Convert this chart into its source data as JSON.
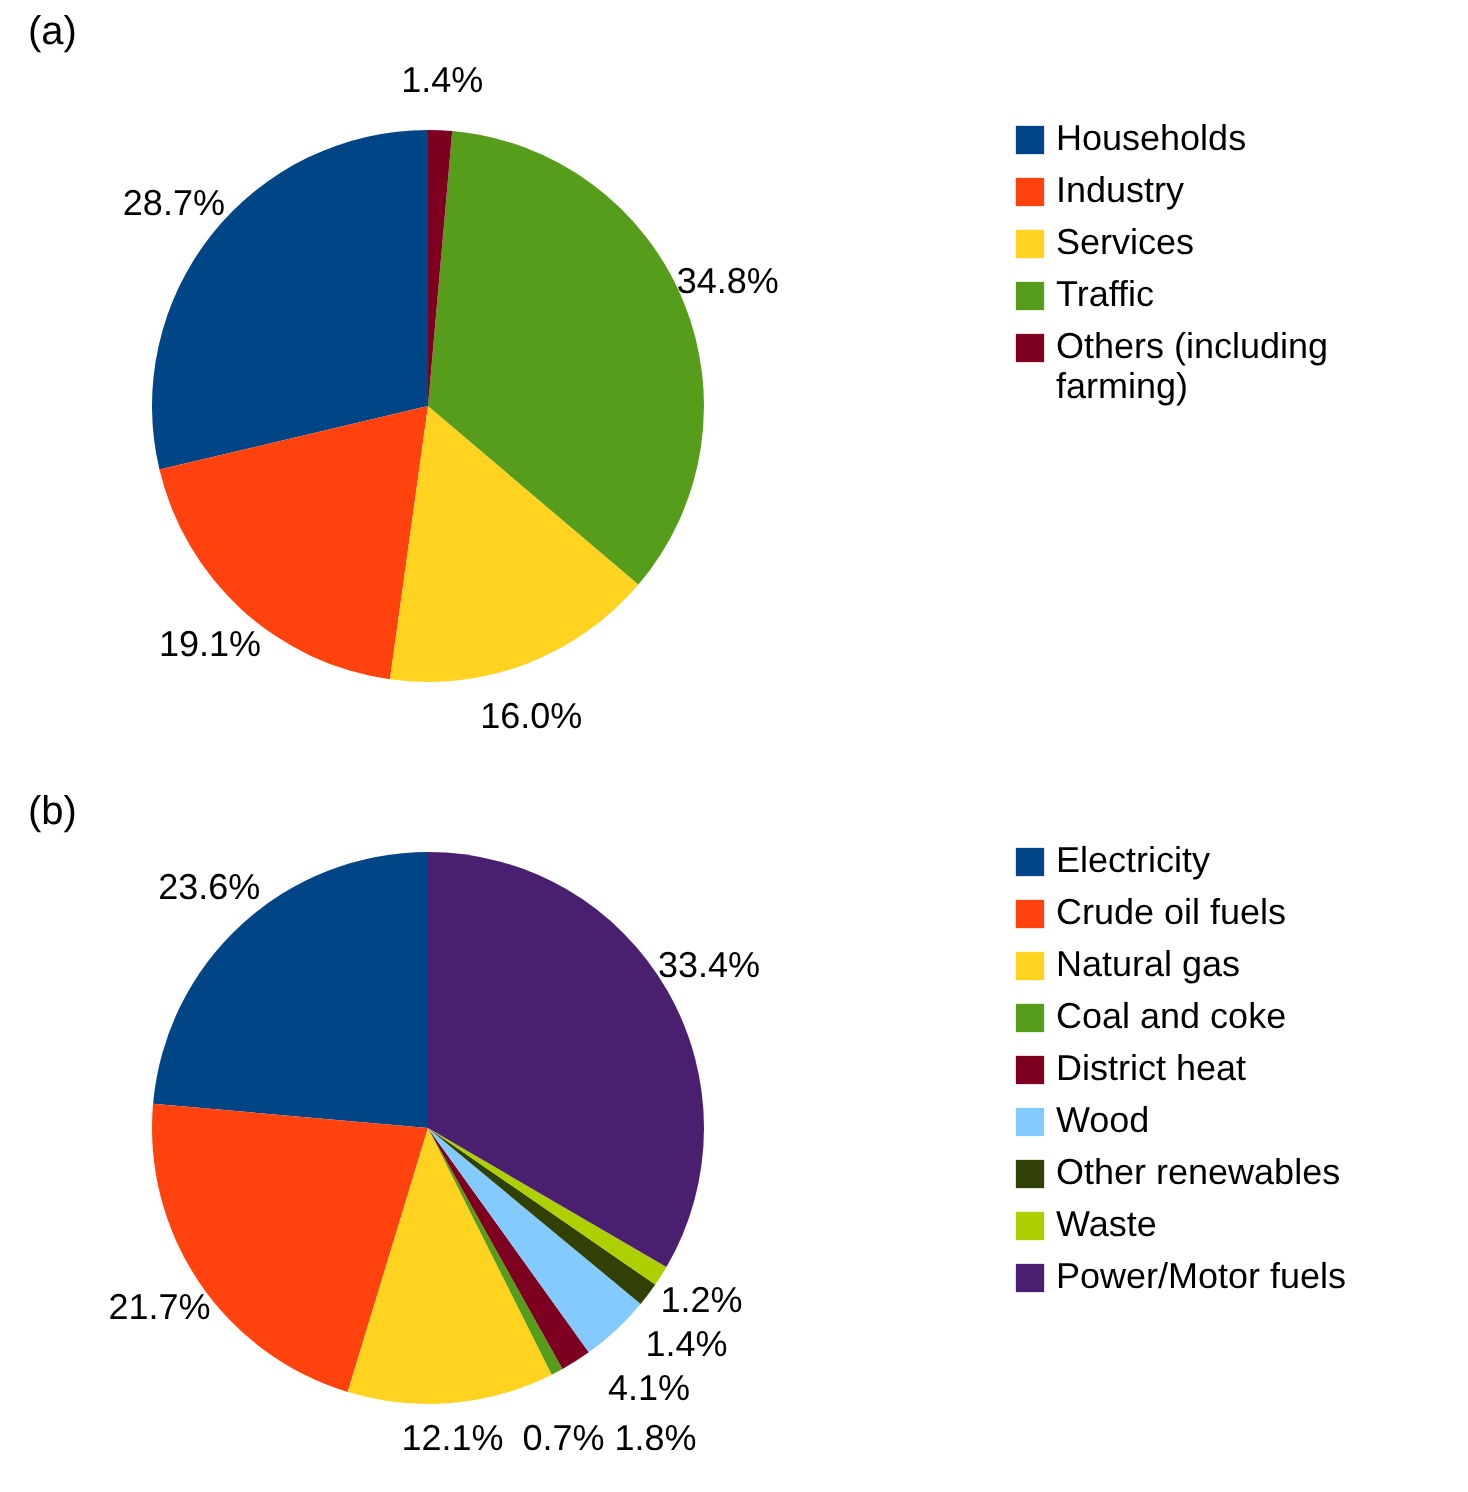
{
  "chart_data": [
    {
      "type": "pie",
      "title": "(a)",
      "categories": [
        "Households",
        "Industry",
        "Services",
        "Traffic",
        "Others (including farming)"
      ],
      "values": [
        28.7,
        19.1,
        16.0,
        34.8,
        1.4
      ],
      "colors": [
        "#004586",
        "#ff420e",
        "#ffd320",
        "#579d1c",
        "#7e0021"
      ],
      "value_labels": [
        "28.7%",
        "19.1%",
        "16.0%",
        "34.8%",
        "1.4%"
      ],
      "legend": "right"
    },
    {
      "type": "pie",
      "title": "(b)",
      "categories": [
        "Electricity",
        "Crude oil fuels",
        "Natural gas",
        "Coal and coke",
        "District heat",
        "Wood",
        "Other renewables",
        "Waste",
        "Power/Motor fuels"
      ],
      "values": [
        23.6,
        21.7,
        12.1,
        0.7,
        1.8,
        4.1,
        1.4,
        1.2,
        33.4
      ],
      "colors": [
        "#004586",
        "#ff420e",
        "#ffd320",
        "#579d1c",
        "#7e0021",
        "#83caff",
        "#314004",
        "#aecf00",
        "#4b1f6f"
      ],
      "value_labels": [
        "23.6%",
        "21.7%",
        "12.1%",
        "0.7%",
        "1.8%",
        "4.1%",
        "1.4%",
        "1.2%",
        "33.4%"
      ],
      "legend": "right"
    }
  ]
}
